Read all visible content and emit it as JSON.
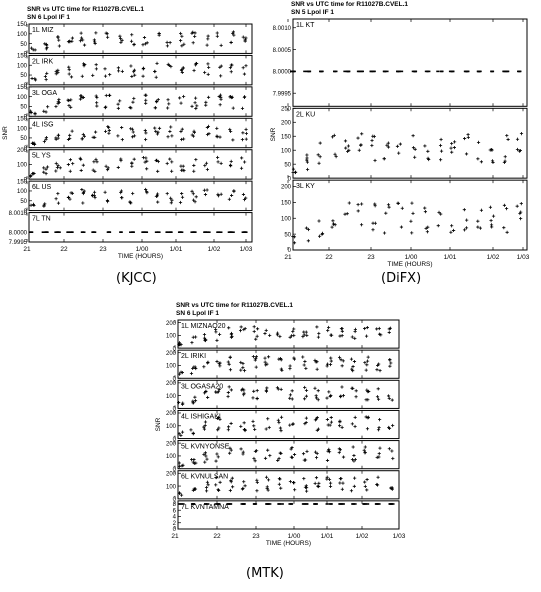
{
  "caption_kjcc": "(KJCC)",
  "caption_difx": "(DiFX)",
  "caption_mtk": "(MTK)",
  "chart_data": [
    {
      "type": "scatter",
      "id": "kjcc",
      "title": "SNR vs UTC time for R11027B.CVEL.1",
      "subtitle": "SN 6  Lpol  IF 1",
      "xlabel": "TIME (HOURS)",
      "ylabel": "SNR",
      "x_ticks": [
        "21",
        "22",
        "23",
        "1/00",
        "1/01",
        "1/02",
        "1/03"
      ],
      "panels": [
        {
          "label": "1L MIZ",
          "yticks": [
            "0",
            "50",
            "100",
            "150"
          ],
          "ylim": [
            0,
            150
          ],
          "profile": "snr",
          "peak": 110
        },
        {
          "label": "2L IRK",
          "yticks": [
            "0",
            "50",
            "100",
            "150"
          ],
          "ylim": [
            0,
            150
          ],
          "profile": "snr",
          "peak": 110
        },
        {
          "label": "3L OGA",
          "yticks": [
            "0",
            "50",
            "100",
            "150"
          ],
          "ylim": [
            0,
            150
          ],
          "profile": "snr",
          "peak": 110
        },
        {
          "label": "4L ISG",
          "yticks": [
            "0",
            "50",
            "100",
            "150"
          ],
          "ylim": [
            0,
            150
          ],
          "profile": "snr",
          "peak": 110
        },
        {
          "label": "5L YS",
          "yticks": [
            "0",
            "100",
            "200"
          ],
          "ylim": [
            0,
            200
          ],
          "profile": "snr",
          "peak": 150
        },
        {
          "label": "6L US",
          "yticks": [
            "0",
            "50",
            "100",
            "150"
          ],
          "ylim": [
            0,
            150
          ],
          "profile": "snr",
          "peak": 110
        },
        {
          "label": "7L TN",
          "yticks": [
            "8.0010",
            "8.0000",
            "7.9995"
          ],
          "ylim": [
            7.9995,
            8.001
          ],
          "profile": "flat",
          "level": 8.0
        }
      ]
    },
    {
      "type": "scatter",
      "id": "difx",
      "title": "SNR vs UTC time for R11027B.CVEL.1",
      "subtitle": "SN 5  Lpol  IF 1",
      "xlabel": "TIME (HOURS)",
      "ylabel": "SNR",
      "x_ticks": [
        "21",
        "22",
        "23",
        "1/00",
        "1/01",
        "1/02",
        "1/03"
      ],
      "panels": [
        {
          "label": "1L KT",
          "yticks": [
            "8.0010",
            "8.0005",
            "8.0000",
            "7.9995"
          ],
          "ylim": [
            7.9992,
            8.0012
          ],
          "profile": "flat",
          "level": 8.0
        },
        {
          "label": "2L KU",
          "yticks": [
            "0",
            "50",
            "100",
            "150",
            "200",
            "250"
          ],
          "ylim": [
            0,
            250
          ],
          "profile": "snr",
          "peak": 160
        },
        {
          "label": "3L KY",
          "yticks": [
            "0",
            "50",
            "100",
            "150",
            "200"
          ],
          "ylim": [
            0,
            220
          ],
          "profile": "snr",
          "peak": 150
        }
      ]
    },
    {
      "type": "scatter",
      "id": "mtk",
      "title": "SNR vs UTC time for R11027B.CVEL.1",
      "subtitle": "SN 6  Lpol  IF 1",
      "xlabel": "TIME (HOURS)",
      "ylabel": "SNR",
      "x_ticks": [
        "21",
        "22",
        "23",
        "1/00",
        "1/01",
        "1/02",
        "1/03"
      ],
      "panels": [
        {
          "label": "1L MIZNAO20",
          "yticks": [
            "0",
            "100",
            "200"
          ],
          "ylim": [
            0,
            220
          ],
          "profile": "snr",
          "peak": 170
        },
        {
          "label": "2L IRIKI",
          "yticks": [
            "0",
            "100",
            "200"
          ],
          "ylim": [
            0,
            220
          ],
          "profile": "snr",
          "peak": 170
        },
        {
          "label": "3L OGASA20",
          "yticks": [
            "0",
            "100",
            "200"
          ],
          "ylim": [
            0,
            220
          ],
          "profile": "snr",
          "peak": 170
        },
        {
          "label": "4L ISHIGAKI",
          "yticks": [
            "0",
            "100",
            "200"
          ],
          "ylim": [
            0,
            220
          ],
          "profile": "snr",
          "peak": 170
        },
        {
          "label": "5L KVNYONSE",
          "yticks": [
            "0",
            "100",
            "200"
          ],
          "ylim": [
            0,
            220
          ],
          "profile": "snr",
          "peak": 170
        },
        {
          "label": "6L KVNULSAN",
          "yticks": [
            "0",
            "100",
            "200"
          ],
          "ylim": [
            0,
            220
          ],
          "profile": "snr",
          "peak": 170
        },
        {
          "label": "7L KVNTAMNA",
          "yticks": [
            "0",
            "2",
            "4",
            "6",
            "8"
          ],
          "ylim": [
            0,
            9
          ],
          "profile": "flat",
          "level": 8
        }
      ]
    }
  ]
}
